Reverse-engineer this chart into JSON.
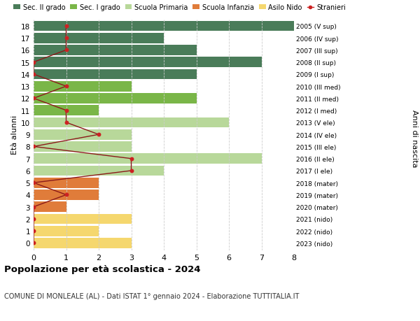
{
  "ages": [
    18,
    17,
    16,
    15,
    14,
    13,
    12,
    11,
    10,
    9,
    8,
    7,
    6,
    5,
    4,
    3,
    2,
    1,
    0
  ],
  "right_labels": [
    "2005 (V sup)",
    "2006 (IV sup)",
    "2007 (III sup)",
    "2008 (II sup)",
    "2009 (I sup)",
    "2010 (III med)",
    "2011 (II med)",
    "2012 (I med)",
    "2013 (V ele)",
    "2014 (IV ele)",
    "2015 (III ele)",
    "2016 (II ele)",
    "2017 (I ele)",
    "2018 (mater)",
    "2019 (mater)",
    "2020 (mater)",
    "2021 (nido)",
    "2022 (nido)",
    "2023 (nido)"
  ],
  "bar_values": [
    8,
    4,
    5,
    7,
    5,
    3,
    5,
    2,
    6,
    3,
    3,
    7,
    4,
    2,
    2,
    1,
    3,
    2,
    3
  ],
  "bar_colors": [
    "#4a7c59",
    "#4a7c59",
    "#4a7c59",
    "#4a7c59",
    "#4a7c59",
    "#7ab648",
    "#7ab648",
    "#7ab648",
    "#b8d89a",
    "#b8d89a",
    "#b8d89a",
    "#b8d89a",
    "#b8d89a",
    "#e07c3a",
    "#e07c3a",
    "#e07c3a",
    "#f5d76e",
    "#f5d76e",
    "#f5d76e"
  ],
  "stranieri_values": [
    1,
    1,
    1,
    0,
    0,
    1,
    0,
    1,
    1,
    2,
    0,
    3,
    3,
    0,
    1,
    0,
    0,
    0,
    0
  ],
  "legend_labels": [
    "Sec. II grado",
    "Sec. I grado",
    "Scuola Primaria",
    "Scuola Infanzia",
    "Asilo Nido",
    "Stranieri"
  ],
  "legend_colors": [
    "#4a7c59",
    "#7ab648",
    "#b8d89a",
    "#e07c3a",
    "#f5d76e",
    "#cc2222"
  ],
  "title": "Popolazione per età scolastica - 2024",
  "subtitle": "COMUNE DI MONLEALE (AL) - Dati ISTAT 1° gennaio 2024 - Elaborazione TUTTITALIA.IT",
  "ylabel": "Età alunni",
  "ylabel2": "Anni di nascita",
  "xlim": [
    0,
    8
  ],
  "bg_color": "#ffffff",
  "plot_bg_color": "#ffffff",
  "grid_color": "#cccccc"
}
